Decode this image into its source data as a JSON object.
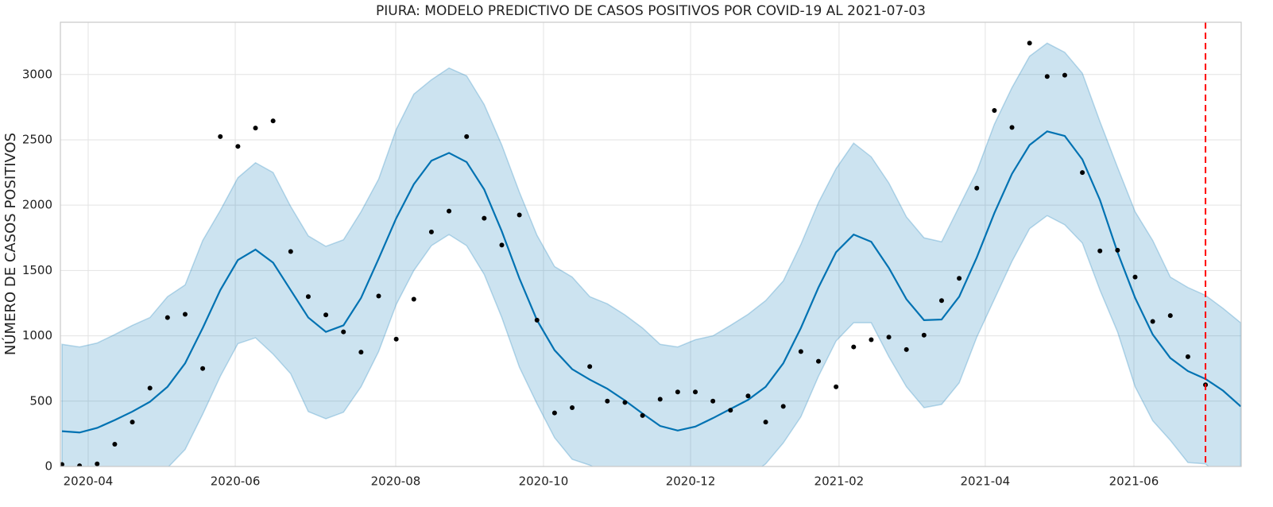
{
  "chart_data": {
    "type": "forecast",
    "title": "PIURA: MODELO PREDICTIVO DE CASOS POSITIVOS POR COVID-19 AL 2021-07-03",
    "y_label": "NÚMERO DE CASOS POSITIVOS",
    "grid": true,
    "xlim": [
      -0.09,
      67.03
    ],
    "xticks": [
      {
        "value": 1.49,
        "label": "2020-04"
      },
      {
        "value": 9.85,
        "label": "2020-06"
      },
      {
        "value": 18.97,
        "label": "2020-08"
      },
      {
        "value": 27.37,
        "label": "2020-10"
      },
      {
        "value": 35.73,
        "label": "2020-12"
      },
      {
        "value": 44.17,
        "label": "2021-02"
      },
      {
        "value": 52.48,
        "label": "2021-04"
      },
      {
        "value": 60.93,
        "label": "2021-06"
      }
    ],
    "ylim": [
      0,
      3400
    ],
    "yticks": [
      0,
      500,
      1000,
      1500,
      2000,
      2500,
      3000
    ],
    "observed": {
      "color": "#000000",
      "x": [
        0,
        1,
        2,
        3,
        4,
        5,
        6,
        7,
        8,
        9,
        10,
        11,
        12,
        13,
        14,
        15,
        16,
        17,
        18,
        19,
        20,
        21,
        22,
        23,
        24,
        25,
        26,
        27,
        28,
        29,
        30,
        31,
        32,
        33,
        34,
        35,
        36,
        37,
        38,
        39,
        40,
        41,
        42,
        43,
        44,
        45,
        46,
        47,
        48,
        49,
        50,
        51,
        52,
        53,
        54,
        55,
        56,
        57,
        58,
        59,
        60,
        61,
        62,
        63,
        64,
        65
      ],
      "values": [
        15,
        5,
        20,
        170,
        340,
        600,
        1140,
        1165,
        750,
        2525,
        2450,
        2590,
        2645,
        1645,
        1300,
        1160,
        1030,
        875,
        1305,
        975,
        1280,
        1795,
        1955,
        2525,
        1900,
        1695,
        1925,
        1120,
        410,
        450,
        765,
        500,
        490,
        390,
        515,
        570,
        570,
        500,
        430,
        540,
        340,
        460,
        880,
        805,
        610,
        915,
        970,
        990,
        895,
        1005,
        1270,
        1440,
        2130,
        2725,
        2595,
        3240,
        2985,
        2995,
        2250,
        1650,
        1655,
        1450,
        1110,
        1155,
        840,
        625
      ]
    },
    "forecast": {
      "color": "#0072B2",
      "band_color": "#0072B2",
      "x": [
        0,
        1,
        2,
        3,
        4,
        5,
        6,
        7,
        8,
        9,
        10,
        11,
        12,
        13,
        14,
        15,
        16,
        17,
        18,
        19,
        20,
        21,
        22,
        23,
        24,
        25,
        26,
        27,
        28,
        29,
        30,
        31,
        32,
        33,
        34,
        35,
        36,
        37,
        38,
        39,
        40,
        41,
        42,
        43,
        44,
        45,
        46,
        47,
        48,
        49,
        50,
        51,
        52,
        53,
        54,
        55,
        56,
        57,
        58,
        59,
        60,
        61,
        62,
        63,
        64,
        65,
        66,
        67
      ],
      "values": [
        270,
        260,
        295,
        355,
        420,
        495,
        610,
        790,
        1060,
        1350,
        1580,
        1660,
        1560,
        1350,
        1140,
        1030,
        1080,
        1290,
        1590,
        1900,
        2160,
        2340,
        2400,
        2330,
        2120,
        1800,
        1440,
        1120,
        890,
        745,
        665,
        595,
        505,
        405,
        310,
        275,
        305,
        370,
        440,
        510,
        610,
        790,
        1060,
        1370,
        1640,
        1775,
        1720,
        1520,
        1280,
        1120,
        1125,
        1300,
        1600,
        1940,
        2240,
        2460,
        2565,
        2530,
        2350,
        2040,
        1640,
        1290,
        1010,
        830,
        730,
        670,
        580,
        460
      ],
      "upper": [
        935,
        915,
        945,
        1010,
        1080,
        1140,
        1300,
        1390,
        1730,
        1960,
        2210,
        2325,
        2250,
        1990,
        1765,
        1685,
        1735,
        1950,
        2200,
        2580,
        2850,
        2960,
        3050,
        2990,
        2770,
        2460,
        2100,
        1770,
        1530,
        1450,
        1300,
        1245,
        1160,
        1060,
        935,
        915,
        970,
        1000,
        1080,
        1165,
        1270,
        1420,
        1700,
        2020,
        2280,
        2475,
        2370,
        2170,
        1910,
        1750,
        1720,
        1990,
        2260,
        2620,
        2900,
        3140,
        3240,
        3170,
        3010,
        2640,
        2290,
        1950,
        1730,
        1450,
        1370,
        1310,
        1210,
        1100
      ],
      "lower": [
        -400,
        -420,
        -380,
        -300,
        -230,
        -120,
        -10,
        130,
        400,
        690,
        940,
        985,
        860,
        710,
        420,
        365,
        415,
        610,
        880,
        1240,
        1500,
        1690,
        1775,
        1690,
        1470,
        1140,
        760,
        480,
        220,
        55,
        10,
        -60,
        -150,
        -250,
        -350,
        -370,
        -330,
        -260,
        -180,
        -80,
        20,
        180,
        380,
        690,
        960,
        1100,
        1100,
        840,
        610,
        450,
        475,
        640,
        990,
        1280,
        1570,
        1820,
        1920,
        1850,
        1710,
        1350,
        1030,
        610,
        350,
        200,
        30,
        20,
        -100,
        -200
      ]
    },
    "vline": {
      "x": 65,
      "color": "#ff0000"
    }
  }
}
